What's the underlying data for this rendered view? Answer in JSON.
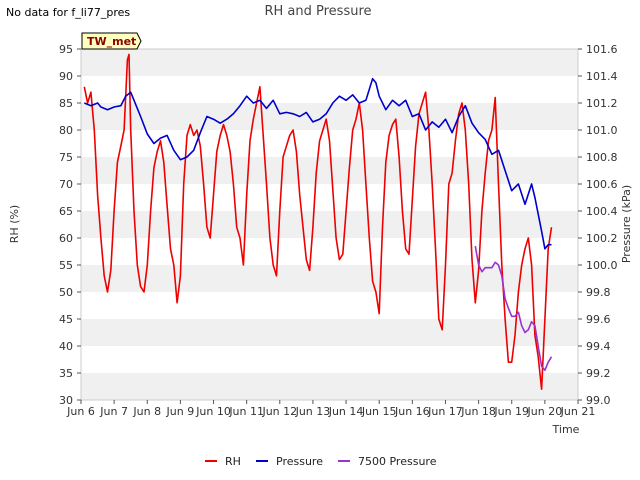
{
  "no_data_message": "No data for f_li77_pres",
  "chart_data": {
    "type": "line",
    "title": "RH and Pressure",
    "station_badge": "TW_met",
    "xlabel": "Time",
    "ylabel_left": "RH (%)",
    "ylabel_right": "Pressure (kPa)",
    "x_range_days": [
      6,
      21
    ],
    "ylim_left": [
      30,
      95
    ],
    "ylim_right": [
      99.0,
      101.6
    ],
    "x_ticks": [
      {
        "day": 6,
        "label": "Jun 6"
      },
      {
        "day": 7,
        "label": "Jun 7"
      },
      {
        "day": 8,
        "label": "Jun 8"
      },
      {
        "day": 9,
        "label": "Jun 9"
      },
      {
        "day": 10,
        "label": "Jun 10"
      },
      {
        "day": 11,
        "label": "Jun 11"
      },
      {
        "day": 12,
        "label": "Jun 12"
      },
      {
        "day": 13,
        "label": "Jun 13"
      },
      {
        "day": 14,
        "label": "Jun 14"
      },
      {
        "day": 15,
        "label": "Jun 15"
      },
      {
        "day": 16,
        "label": "Jun 16"
      },
      {
        "day": 17,
        "label": "Jun 17"
      },
      {
        "day": 18,
        "label": "Jun 18"
      },
      {
        "day": 19,
        "label": "Jun 19"
      },
      {
        "day": 20,
        "label": "Jun 20"
      },
      {
        "day": 21,
        "label": "Jun 21"
      }
    ],
    "y_ticks_left": [
      "30",
      "35",
      "40",
      "45",
      "50",
      "55",
      "60",
      "65",
      "70",
      "75",
      "80",
      "85",
      "90",
      "95"
    ],
    "y_ticks_right": [
      "99.0",
      "99.2",
      "99.4",
      "99.6",
      "99.8",
      "100.0",
      "100.2",
      "100.4",
      "100.6",
      "100.8",
      "101.0",
      "101.2",
      "101.4",
      "101.6"
    ],
    "legend": [
      {
        "name": "RH",
        "color": "#ee0000"
      },
      {
        "name": "Pressure",
        "color": "#0000cc"
      },
      {
        "name": "7500 Pressure",
        "color": "#9933cc"
      }
    ],
    "series": [
      {
        "name": "RH",
        "axis": "left",
        "color": "#ee0000",
        "points": [
          [
            6.1,
            88
          ],
          [
            6.2,
            85
          ],
          [
            6.3,
            87
          ],
          [
            6.4,
            80
          ],
          [
            6.5,
            68
          ],
          [
            6.6,
            60
          ],
          [
            6.7,
            53
          ],
          [
            6.8,
            50
          ],
          [
            6.9,
            54
          ],
          [
            7.0,
            65
          ],
          [
            7.1,
            74
          ],
          [
            7.2,
            77
          ],
          [
            7.3,
            80
          ],
          [
            7.4,
            93
          ],
          [
            7.45,
            94
          ],
          [
            7.5,
            80
          ],
          [
            7.6,
            65
          ],
          [
            7.7,
            55
          ],
          [
            7.8,
            51
          ],
          [
            7.9,
            50
          ],
          [
            8.0,
            55
          ],
          [
            8.1,
            65
          ],
          [
            8.2,
            73
          ],
          [
            8.3,
            76
          ],
          [
            8.4,
            78
          ],
          [
            8.5,
            74
          ],
          [
            8.6,
            66
          ],
          [
            8.7,
            58
          ],
          [
            8.8,
            55
          ],
          [
            8.9,
            48
          ],
          [
            9.0,
            53
          ],
          [
            9.1,
            70
          ],
          [
            9.2,
            79
          ],
          [
            9.3,
            81
          ],
          [
            9.4,
            79
          ],
          [
            9.5,
            80
          ],
          [
            9.6,
            77
          ],
          [
            9.7,
            70
          ],
          [
            9.8,
            62
          ],
          [
            9.9,
            60
          ],
          [
            10.0,
            68
          ],
          [
            10.1,
            76
          ],
          [
            10.2,
            79
          ],
          [
            10.3,
            81
          ],
          [
            10.4,
            79
          ],
          [
            10.5,
            76
          ],
          [
            10.6,
            70
          ],
          [
            10.7,
            62
          ],
          [
            10.8,
            60
          ],
          [
            10.9,
            55
          ],
          [
            11.0,
            68
          ],
          [
            11.1,
            78
          ],
          [
            11.2,
            82
          ],
          [
            11.3,
            85
          ],
          [
            11.4,
            88
          ],
          [
            11.5,
            79
          ],
          [
            11.6,
            70
          ],
          [
            11.7,
            60
          ],
          [
            11.8,
            55
          ],
          [
            11.9,
            53
          ],
          [
            12.0,
            65
          ],
          [
            12.1,
            75
          ],
          [
            12.2,
            77
          ],
          [
            12.3,
            79
          ],
          [
            12.4,
            80
          ],
          [
            12.5,
            76
          ],
          [
            12.6,
            68
          ],
          [
            12.7,
            62
          ],
          [
            12.8,
            56
          ],
          [
            12.9,
            54
          ],
          [
            13.0,
            62
          ],
          [
            13.1,
            72
          ],
          [
            13.2,
            78
          ],
          [
            13.3,
            80
          ],
          [
            13.4,
            82
          ],
          [
            13.5,
            78
          ],
          [
            13.6,
            69
          ],
          [
            13.7,
            60
          ],
          [
            13.8,
            56
          ],
          [
            13.9,
            57
          ],
          [
            14.0,
            65
          ],
          [
            14.1,
            73
          ],
          [
            14.2,
            80
          ],
          [
            14.3,
            82
          ],
          [
            14.4,
            85
          ],
          [
            14.5,
            80
          ],
          [
            14.6,
            70
          ],
          [
            14.7,
            60
          ],
          [
            14.8,
            52
          ],
          [
            14.9,
            50
          ],
          [
            15.0,
            46
          ],
          [
            15.1,
            62
          ],
          [
            15.2,
            74
          ],
          [
            15.3,
            79
          ],
          [
            15.4,
            81
          ],
          [
            15.5,
            82
          ],
          [
            15.6,
            75
          ],
          [
            15.7,
            65
          ],
          [
            15.8,
            58
          ],
          [
            15.9,
            57
          ],
          [
            16.0,
            67
          ],
          [
            16.1,
            77
          ],
          [
            16.2,
            83
          ],
          [
            16.3,
            85
          ],
          [
            16.4,
            87
          ],
          [
            16.5,
            80
          ],
          [
            16.6,
            70
          ],
          [
            16.7,
            58
          ],
          [
            16.8,
            45
          ],
          [
            16.9,
            43
          ],
          [
            17.0,
            55
          ],
          [
            17.1,
            70
          ],
          [
            17.2,
            72
          ],
          [
            17.3,
            78
          ],
          [
            17.4,
            83
          ],
          [
            17.5,
            85
          ],
          [
            17.6,
            80
          ],
          [
            17.7,
            70
          ],
          [
            17.8,
            56
          ],
          [
            17.9,
            48
          ],
          [
            18.0,
            54
          ],
          [
            18.1,
            65
          ],
          [
            18.2,
            72
          ],
          [
            18.3,
            78
          ],
          [
            18.4,
            80
          ],
          [
            18.5,
            86
          ],
          [
            18.6,
            70
          ],
          [
            18.7,
            55
          ],
          [
            18.8,
            45
          ],
          [
            18.9,
            37
          ],
          [
            19.0,
            37
          ],
          [
            19.1,
            42
          ],
          [
            19.2,
            50
          ],
          [
            19.3,
            55
          ],
          [
            19.4,
            58
          ],
          [
            19.5,
            60
          ],
          [
            19.6,
            55
          ],
          [
            19.7,
            42
          ],
          [
            19.8,
            38
          ],
          [
            19.9,
            32
          ],
          [
            20.0,
            45
          ],
          [
            20.1,
            58
          ],
          [
            20.2,
            62
          ]
        ]
      },
      {
        "name": "Pressure",
        "axis": "right",
        "color": "#0000cc",
        "points": [
          [
            6.1,
            101.2
          ],
          [
            6.3,
            101.18
          ],
          [
            6.5,
            101.2
          ],
          [
            6.6,
            101.17
          ],
          [
            6.8,
            101.15
          ],
          [
            7.0,
            101.17
          ],
          [
            7.2,
            101.18
          ],
          [
            7.35,
            101.25
          ],
          [
            7.5,
            101.28
          ],
          [
            7.6,
            101.22
          ],
          [
            7.8,
            101.1
          ],
          [
            8.0,
            100.97
          ],
          [
            8.2,
            100.9
          ],
          [
            8.4,
            100.94
          ],
          [
            8.6,
            100.96
          ],
          [
            8.8,
            100.85
          ],
          [
            9.0,
            100.78
          ],
          [
            9.2,
            100.8
          ],
          [
            9.4,
            100.85
          ],
          [
            9.6,
            100.98
          ],
          [
            9.8,
            101.1
          ],
          [
            10.0,
            101.08
          ],
          [
            10.2,
            101.05
          ],
          [
            10.4,
            101.08
          ],
          [
            10.6,
            101.12
          ],
          [
            10.8,
            101.18
          ],
          [
            11.0,
            101.25
          ],
          [
            11.2,
            101.2
          ],
          [
            11.4,
            101.22
          ],
          [
            11.6,
            101.16
          ],
          [
            11.8,
            101.22
          ],
          [
            12.0,
            101.12
          ],
          [
            12.2,
            101.13
          ],
          [
            12.4,
            101.12
          ],
          [
            12.6,
            101.1
          ],
          [
            12.8,
            101.13
          ],
          [
            13.0,
            101.06
          ],
          [
            13.2,
            101.08
          ],
          [
            13.4,
            101.12
          ],
          [
            13.6,
            101.2
          ],
          [
            13.8,
            101.25
          ],
          [
            14.0,
            101.22
          ],
          [
            14.2,
            101.26
          ],
          [
            14.4,
            101.2
          ],
          [
            14.6,
            101.22
          ],
          [
            14.8,
            101.38
          ],
          [
            14.9,
            101.35
          ],
          [
            15.0,
            101.25
          ],
          [
            15.2,
            101.15
          ],
          [
            15.4,
            101.22
          ],
          [
            15.6,
            101.18
          ],
          [
            15.8,
            101.22
          ],
          [
            16.0,
            101.1
          ],
          [
            16.2,
            101.12
          ],
          [
            16.4,
            101.0
          ],
          [
            16.6,
            101.06
          ],
          [
            16.8,
            101.02
          ],
          [
            17.0,
            101.08
          ],
          [
            17.2,
            100.98
          ],
          [
            17.4,
            101.1
          ],
          [
            17.6,
            101.18
          ],
          [
            17.8,
            101.05
          ],
          [
            18.0,
            100.98
          ],
          [
            18.2,
            100.93
          ],
          [
            18.4,
            100.82
          ],
          [
            18.6,
            100.85
          ],
          [
            18.8,
            100.7
          ],
          [
            19.0,
            100.55
          ],
          [
            19.2,
            100.6
          ],
          [
            19.4,
            100.45
          ],
          [
            19.6,
            100.6
          ],
          [
            19.7,
            100.5
          ],
          [
            19.9,
            100.25
          ],
          [
            20.0,
            100.12
          ],
          [
            20.1,
            100.15
          ],
          [
            20.2,
            100.15
          ]
        ]
      },
      {
        "name": "7500 Pressure",
        "axis": "right",
        "color": "#9933cc",
        "points": [
          [
            17.9,
            100.14
          ],
          [
            18.0,
            100.0
          ],
          [
            18.1,
            99.95
          ],
          [
            18.2,
            99.98
          ],
          [
            18.3,
            99.98
          ],
          [
            18.4,
            99.98
          ],
          [
            18.5,
            100.02
          ],
          [
            18.6,
            100.0
          ],
          [
            18.7,
            99.92
          ],
          [
            18.8,
            99.75
          ],
          [
            18.9,
            99.68
          ],
          [
            19.0,
            99.62
          ],
          [
            19.1,
            99.62
          ],
          [
            19.2,
            99.65
          ],
          [
            19.3,
            99.55
          ],
          [
            19.4,
            99.5
          ],
          [
            19.5,
            99.52
          ],
          [
            19.6,
            99.58
          ],
          [
            19.7,
            99.55
          ],
          [
            19.8,
            99.4
          ],
          [
            19.9,
            99.25
          ],
          [
            20.0,
            99.22
          ],
          [
            20.1,
            99.28
          ],
          [
            20.2,
            99.32
          ]
        ]
      }
    ]
  }
}
